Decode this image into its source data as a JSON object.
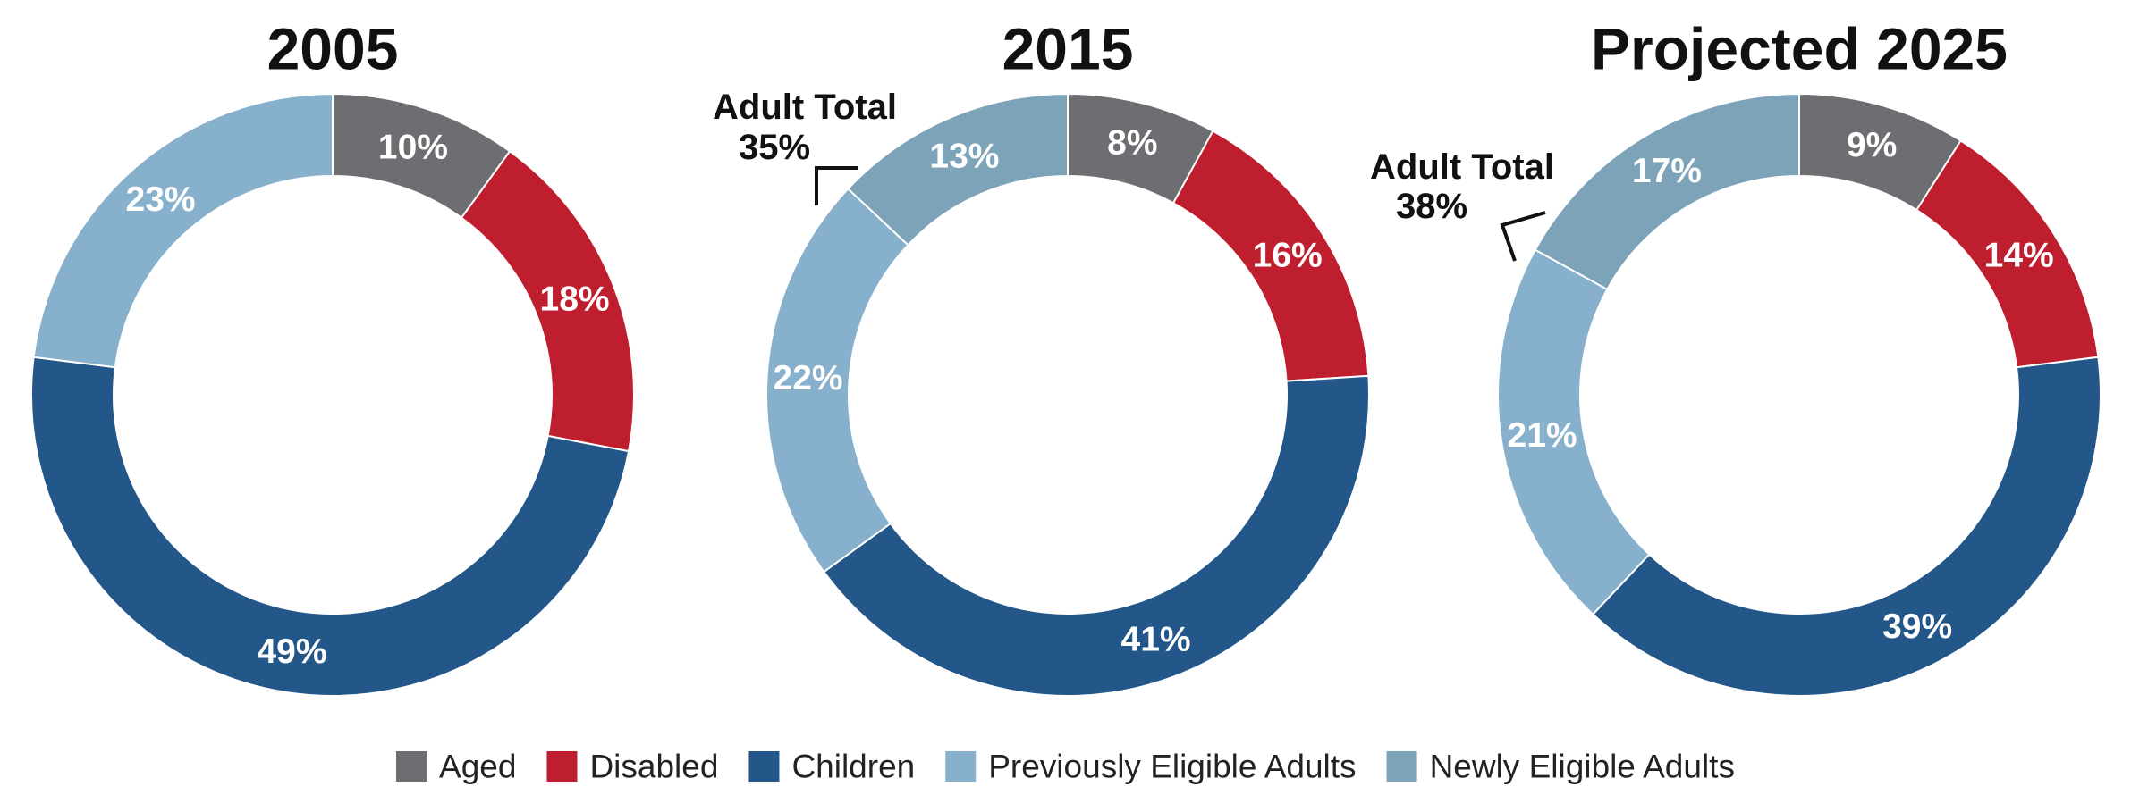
{
  "chart_data": {
    "type": "pie",
    "variant": "donut",
    "categories": [
      "Aged",
      "Disabled",
      "Children",
      "Previously Eligible Adults",
      "Newly Eligible Adults"
    ],
    "colors": {
      "Aged": "#6d6e71",
      "Disabled": "#be1e2d",
      "Children": "#235789",
      "Previously Eligible Adults": "#86b0cb",
      "Newly Eligible Adults": "#7da3b9"
    },
    "legend": {
      "placement": "bottom",
      "items": [
        {
          "label": "Aged",
          "color": "#6d6e71"
        },
        {
          "label": "Disabled",
          "color": "#be1e2d"
        },
        {
          "label": "Children",
          "color": "#235789"
        },
        {
          "label": "Previously Eligible Adults",
          "color": "#86b0cb"
        },
        {
          "label": "Newly Eligible Adults",
          "color": "#7da3b9"
        }
      ]
    },
    "charts": [
      {
        "title": "2005",
        "slices": [
          {
            "category": "Aged",
            "value": 10,
            "label": "10%"
          },
          {
            "category": "Disabled",
            "value": 18,
            "label": "18%"
          },
          {
            "category": "Children",
            "value": 49,
            "label": "49%"
          },
          {
            "category": "Previously Eligible Adults",
            "value": 23,
            "label": "23%"
          }
        ]
      },
      {
        "title": "2015",
        "slices": [
          {
            "category": "Aged",
            "value": 8,
            "label": "8%"
          },
          {
            "category": "Disabled",
            "value": 16,
            "label": "16%"
          },
          {
            "category": "Children",
            "value": 41,
            "label": "41%"
          },
          {
            "category": "Previously Eligible Adults",
            "value": 22,
            "label": "22%"
          },
          {
            "category": "Newly Eligible Adults",
            "value": 13,
            "label": "13%"
          }
        ],
        "annotation": {
          "line1": "Adult Total",
          "line2": "35%"
        }
      },
      {
        "title": "Projected 2025",
        "slices": [
          {
            "category": "Aged",
            "value": 9,
            "label": "9%"
          },
          {
            "category": "Disabled",
            "value": 14,
            "label": "14%"
          },
          {
            "category": "Children",
            "value": 39,
            "label": "39%"
          },
          {
            "category": "Previously Eligible Adults",
            "value": 21,
            "label": "21%"
          },
          {
            "category": "Newly Eligible Adults",
            "value": 17,
            "label": "17%"
          }
        ],
        "annotation": {
          "line1": "Adult Total",
          "line2": "38%"
        }
      }
    ]
  }
}
